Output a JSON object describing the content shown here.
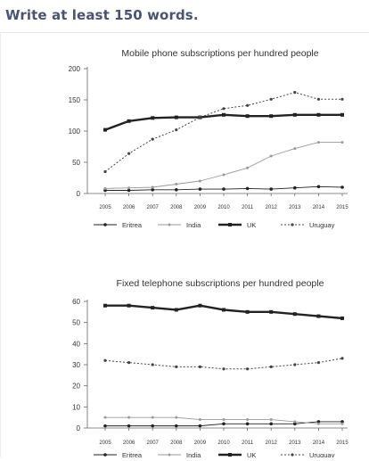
{
  "instruction": "Write at least 150 words.",
  "chart_data": [
    {
      "type": "line",
      "title": "Mobile phone subscriptions per hundred people",
      "xlabel": "",
      "ylabel": "",
      "x": [
        "2005",
        "2006",
        "2007",
        "2008",
        "2009",
        "2010",
        "2011",
        "2012",
        "2013",
        "2014",
        "2015"
      ],
      "ylim": [
        0,
        200
      ],
      "yticks": [
        0,
        50,
        100,
        150,
        200
      ],
      "grid": false,
      "legend": "bottom",
      "series": [
        {
          "name": "Eritrea",
          "style": "solid-thin",
          "color": "#222222",
          "values": [
            5,
            5,
            6,
            6,
            7,
            7,
            8,
            7,
            9,
            11,
            10
          ]
        },
        {
          "name": "India",
          "style": "solid-light",
          "color": "#9a9a9a",
          "values": [
            8,
            9,
            10,
            15,
            20,
            30,
            41,
            60,
            72,
            82,
            82
          ]
        },
        {
          "name": "UK",
          "style": "solid-thick",
          "color": "#222222",
          "values": [
            102,
            116,
            121,
            122,
            122,
            126,
            124,
            124,
            126,
            126,
            126
          ]
        },
        {
          "name": "Uruguay",
          "style": "dotted",
          "color": "#444444",
          "values": [
            35,
            64,
            87,
            102,
            122,
            136,
            141,
            151,
            162,
            151,
            151
          ]
        }
      ]
    },
    {
      "type": "line",
      "title": "Fixed telephone subscriptions per hundred people",
      "xlabel": "",
      "ylabel": "",
      "x": [
        "2005",
        "2006",
        "2007",
        "2008",
        "2009",
        "2010",
        "2011",
        "2012",
        "2013",
        "2014",
        "2015"
      ],
      "ylim": [
        0,
        60
      ],
      "yticks": [
        0,
        10,
        20,
        30,
        40,
        50,
        60
      ],
      "grid": false,
      "legend": "bottom",
      "series": [
        {
          "name": "Eritrea",
          "style": "solid-thin",
          "color": "#222222",
          "values": [
            1,
            1,
            1,
            1,
            1,
            2,
            2,
            2,
            2,
            3,
            3
          ]
        },
        {
          "name": "India",
          "style": "solid-light",
          "color": "#9a9a9a",
          "values": [
            5,
            5,
            5,
            5,
            4,
            4,
            4,
            4,
            3,
            2,
            2
          ]
        },
        {
          "name": "UK",
          "style": "solid-thick",
          "color": "#222222",
          "values": [
            58,
            58,
            57,
            56,
            58,
            56,
            55,
            55,
            54,
            53,
            52
          ]
        },
        {
          "name": "Uruguay",
          "style": "dotted",
          "color": "#444444",
          "values": [
            32,
            31,
            30,
            29,
            29,
            28,
            28,
            29,
            30,
            31,
            33
          ]
        }
      ]
    }
  ]
}
